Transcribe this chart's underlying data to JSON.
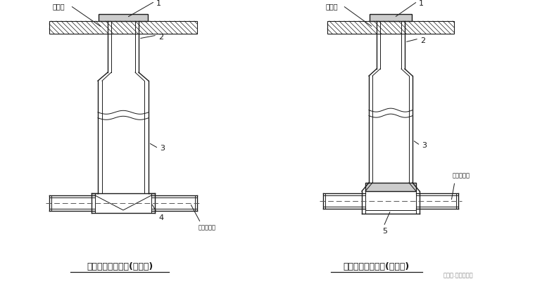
{
  "bg_color": "#ffffff",
  "line_color": "#1a1a1a",
  "title1": "非防护井盖检查井(有流槽)",
  "title2": "非防护井盖检查井(无流槽)",
  "watermark": "给排水.电知识平台"
}
